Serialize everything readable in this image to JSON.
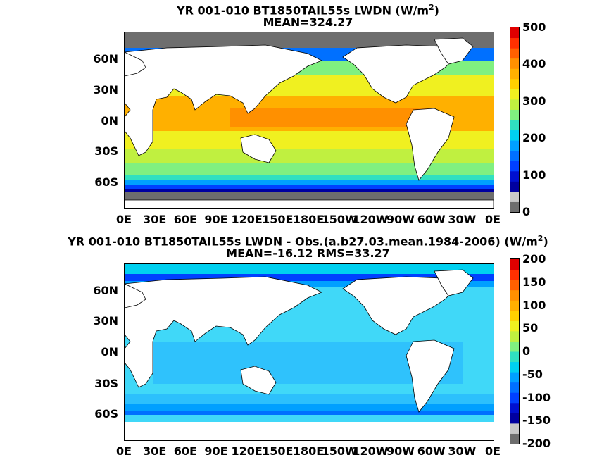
{
  "top": {
    "title_pre": "YR 001-010 BT1850TAIL55s LWDN (W/m",
    "title_sup": "2",
    "title_post": ")",
    "subtitle": "MEAN=324.27",
    "colorbar_ticks": [
      "500",
      "400",
      "300",
      "200",
      "100",
      "0"
    ],
    "colors": [
      "#6e6e6e",
      "#c8c8c8",
      "#0000a0",
      "#0010d0",
      "#0040ff",
      "#0070ff",
      "#00a0ff",
      "#00d0f0",
      "#30e0c0",
      "#80f080",
      "#c0f040",
      "#f0f020",
      "#ffd000",
      "#ffb000",
      "#ff9000",
      "#ff6000",
      "#ff3000",
      "#e00000"
    ]
  },
  "bottom": {
    "title_pre": "YR 001-010 BT1850TAIL55s LWDN - Obs.(a.b27.03.mean.1984-2006) (W/m",
    "title_sup": "2",
    "title_post": ")",
    "subtitle": "MEAN=-16.12 RMS=33.27",
    "colorbar_ticks": [
      "200",
      "150",
      "100",
      "50",
      "0",
      "-50",
      "-100",
      "-150",
      "-200"
    ],
    "colors": [
      "#6e6e6e",
      "#c8c8c8",
      "#0000a0",
      "#0010d0",
      "#0040ff",
      "#0070ff",
      "#00a0ff",
      "#00d0f0",
      "#30e0c0",
      "#80f080",
      "#c0f040",
      "#f0f020",
      "#ffd000",
      "#ffb000",
      "#ff9000",
      "#ff6000",
      "#ff3000",
      "#e00000"
    ]
  },
  "lat_labels": [
    "60N",
    "30N",
    "0N",
    "30S",
    "60S"
  ],
  "lon_labels": [
    "0E",
    "30E",
    "60E",
    "90E",
    "120E",
    "150E",
    "180E",
    "150W",
    "120W",
    "90W",
    "60W",
    "30W",
    "0E"
  ],
  "palette": {
    "land": "#ffffff",
    "sea_ice": "#6e6e6e",
    "deep_blue": "#0010d0",
    "blue": "#0070ff",
    "cyan": "#00d0f0",
    "green": "#80f080",
    "yellow": "#f0f020",
    "orange": "#ffb000",
    "dark_orange": "#ff9000",
    "bias_main": "#40d8f8",
    "bias_low": "#20b0ff"
  }
}
